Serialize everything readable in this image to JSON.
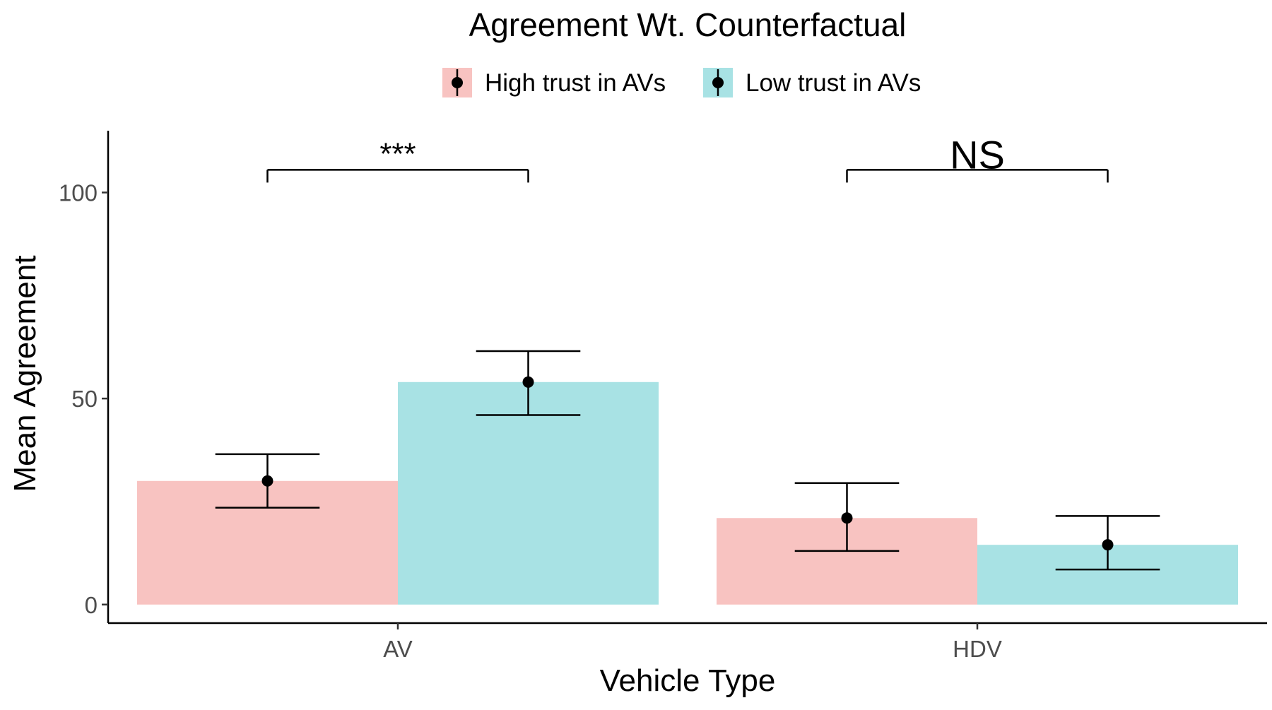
{
  "chart_data": {
    "type": "bar",
    "title": "Agreement Wt. Counterfactual",
    "xlabel": "Vehicle Type",
    "ylabel": "Mean Agreement",
    "categories": [
      "AV",
      "HDV"
    ],
    "ylim": [
      -4.5,
      115
    ],
    "yticks": [
      0,
      50,
      100
    ],
    "series": [
      {
        "name": "High trust in AVs",
        "color": "#F8C3C1",
        "values": [
          30,
          21
        ],
        "ci_low": [
          23.5,
          13
        ],
        "ci_high": [
          36.5,
          29.5
        ]
      },
      {
        "name": "Low trust in AVs",
        "color": "#A8E2E4",
        "values": [
          54,
          14.5
        ],
        "ci_low": [
          46,
          8.5
        ],
        "ci_high": [
          61.5,
          21.5
        ]
      }
    ],
    "legend_position": "top",
    "annotations": [
      {
        "category": "AV",
        "label": "***",
        "y": 105.5
      },
      {
        "category": "HDV",
        "label": "NS",
        "y": 105.5
      }
    ]
  }
}
